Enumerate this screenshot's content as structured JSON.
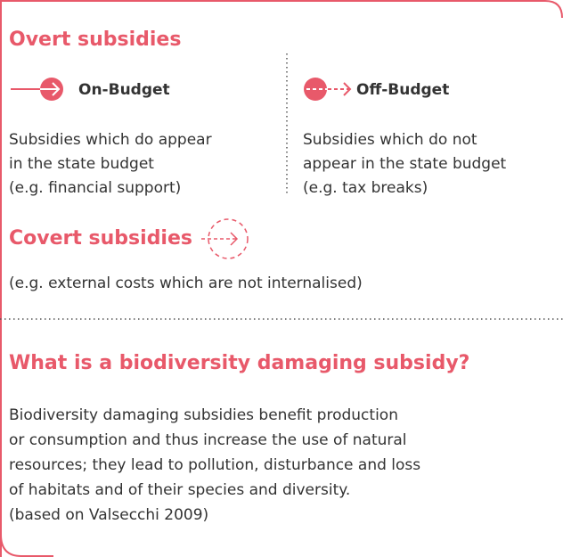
{
  "overt": {
    "title": "Overt subsidies",
    "on_budget": {
      "label": "On-Budget",
      "lines": [
        "Subsidies which do appear",
        "in the state budget",
        "(e.g. financial support)"
      ]
    },
    "off_budget": {
      "label": "Off-Budget",
      "lines": [
        "Subsidies which do not",
        "appear in the state budget",
        "(e.g. tax breaks)"
      ]
    }
  },
  "covert": {
    "title": "Covert subsidies",
    "lines": [
      "(e.g. external costs which are not internalised)"
    ]
  },
  "definition": {
    "title": "What is a biodiversity damaging subsidy?",
    "lines": [
      "Biodiversity damaging subsidies benefit production",
      "or consumption and thus increase the use of natural",
      "resources; they lead to pollution, disturbance and loss",
      "of habitats and of their species and diversity.",
      "(based on Valsecchi 2009)"
    ]
  }
}
